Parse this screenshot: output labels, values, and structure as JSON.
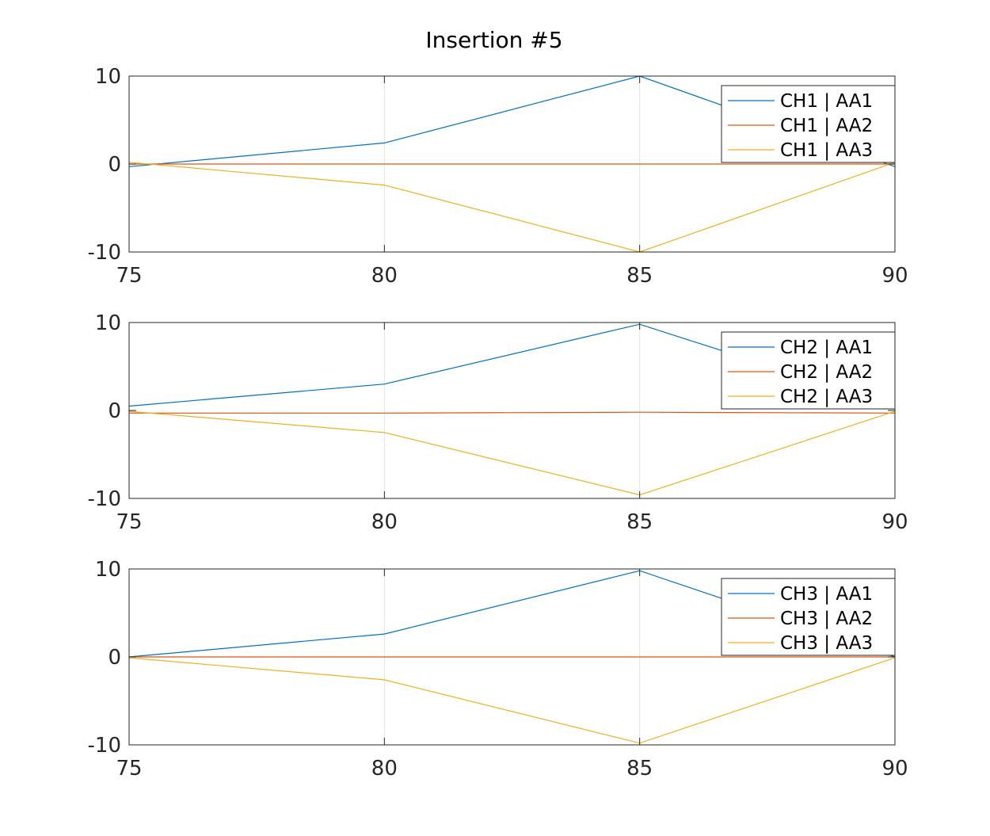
{
  "figure": {
    "title": "Insertion #5"
  },
  "chart_data": [
    {
      "type": "line",
      "title": "",
      "xlabel": "",
      "ylabel": "",
      "xlim": [
        75,
        90
      ],
      "ylim": [
        -10,
        10
      ],
      "x_ticks": [
        75,
        80,
        85,
        90
      ],
      "y_ticks": [
        10,
        0,
        -10
      ],
      "x_tick_labels": [
        "75",
        "80",
        "85",
        "90"
      ],
      "y_tick_labels": [
        "10",
        "0",
        "-10"
      ],
      "grid": "x",
      "legend_placement": "top-right",
      "series": [
        {
          "name": "CH1 | AA1",
          "color": "#0072BD",
          "x": [
            75,
            80,
            85,
            90
          ],
          "values": [
            -0.3,
            2.4,
            10.0,
            -0.3
          ]
        },
        {
          "name": "CH1 | AA2",
          "color": "#D95319",
          "x": [
            75,
            80,
            85,
            90
          ],
          "values": [
            0.0,
            0.0,
            0.0,
            0.0
          ]
        },
        {
          "name": "CH1 | AA3",
          "color": "#EDB120",
          "x": [
            75,
            80,
            85,
            90
          ],
          "values": [
            0.2,
            -2.4,
            -10.0,
            0.2
          ]
        }
      ]
    },
    {
      "type": "line",
      "title": "",
      "xlabel": "",
      "ylabel": "",
      "xlim": [
        75,
        90
      ],
      "ylim": [
        -10,
        10
      ],
      "x_ticks": [
        75,
        80,
        85,
        90
      ],
      "y_ticks": [
        10,
        0,
        -10
      ],
      "x_tick_labels": [
        "75",
        "80",
        "85",
        "90"
      ],
      "y_tick_labels": [
        "10",
        "0",
        "-10"
      ],
      "grid": "x",
      "legend_placement": "top-right",
      "series": [
        {
          "name": "CH2 | AA1",
          "color": "#0072BD",
          "x": [
            75,
            80,
            85,
            90
          ],
          "values": [
            0.5,
            3.0,
            9.8,
            0.5
          ]
        },
        {
          "name": "CH2 | AA2",
          "color": "#D95319",
          "x": [
            75,
            80,
            85,
            90
          ],
          "values": [
            -0.3,
            -0.3,
            -0.2,
            -0.3
          ]
        },
        {
          "name": "CH2 | AA3",
          "color": "#EDB120",
          "x": [
            75,
            80,
            85,
            90
          ],
          "values": [
            -0.1,
            -2.5,
            -9.6,
            -0.1
          ]
        }
      ]
    },
    {
      "type": "line",
      "title": "",
      "xlabel": "",
      "ylabel": "",
      "xlim": [
        75,
        90
      ],
      "ylim": [
        -10,
        10
      ],
      "x_ticks": [
        75,
        80,
        85,
        90
      ],
      "y_ticks": [
        10,
        0,
        -10
      ],
      "x_tick_labels": [
        "75",
        "80",
        "85",
        "90"
      ],
      "y_tick_labels": [
        "10",
        "0",
        "-10"
      ],
      "grid": "x",
      "legend_placement": "top-right",
      "series": [
        {
          "name": "CH3 | AA1",
          "color": "#0072BD",
          "x": [
            75,
            80,
            85,
            90
          ],
          "values": [
            0.0,
            2.6,
            9.8,
            0.0
          ]
        },
        {
          "name": "CH3 | AA2",
          "color": "#D95319",
          "x": [
            75,
            80,
            85,
            90
          ],
          "values": [
            0.0,
            0.0,
            0.0,
            0.0
          ]
        },
        {
          "name": "CH3 | AA3",
          "color": "#EDB120",
          "x": [
            75,
            80,
            85,
            90
          ],
          "values": [
            -0.1,
            -2.6,
            -9.8,
            -0.1
          ]
        }
      ]
    }
  ]
}
